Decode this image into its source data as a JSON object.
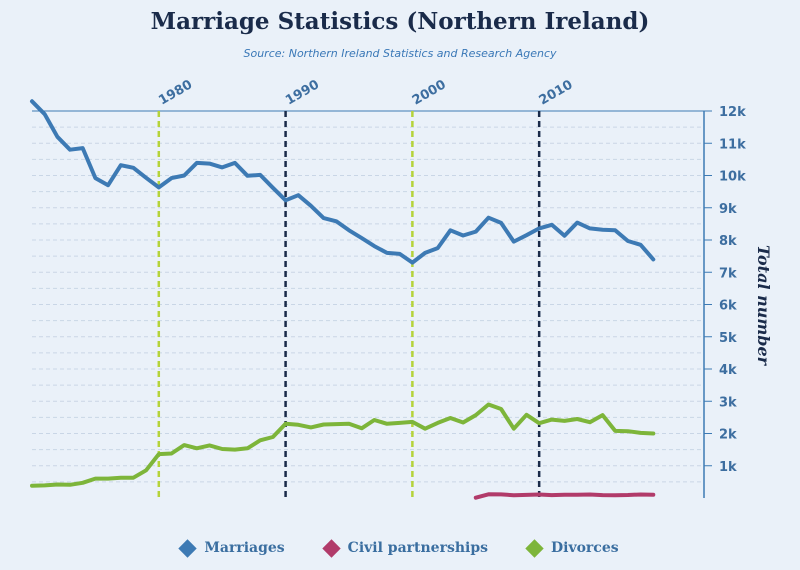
{
  "title": "Marriage Statistics (Northern Ireland)",
  "subtitle": "Source: Northern Ireland Statistics and Research Agency",
  "colors": {
    "marriages": "#3d7ab4",
    "civil": "#b13b6a",
    "divorces": "#7db53a",
    "band_light": "#b5d33a",
    "band_dark": "#1a2b4a"
  },
  "legend": [
    {
      "label": "Marriages",
      "color": "#3d7ab4"
    },
    {
      "label": "Civil partnerships",
      "color": "#b13b6a"
    },
    {
      "label": "Divorces",
      "color": "#7db53a"
    }
  ],
  "chart_data": {
    "type": "line",
    "title": "Marriage Statistics (Northern Ireland)",
    "subtitle": "Source: Northern Ireland Statistics and Research Agency",
    "ylabel": "Total number",
    "xlim": [
      1970,
      2023
    ],
    "ylim": [
      0,
      12000
    ],
    "y_ticks": [
      1000,
      2000,
      3000,
      4000,
      5000,
      6000,
      7000,
      8000,
      9000,
      10000,
      11000,
      12000
    ],
    "y_tick_labels": [
      "1k",
      "2k",
      "3k",
      "4k",
      "5k",
      "6k",
      "7k",
      "8k",
      "9k",
      "10k",
      "11k",
      "12k"
    ],
    "x_plot_lines": [
      {
        "x": 1980,
        "label": "1980",
        "color": "#b5d33a"
      },
      {
        "x": 1990,
        "label": "1990",
        "color": "#1a2b4a"
      },
      {
        "x": 2000,
        "label": "2000",
        "color": "#b5d33a"
      },
      {
        "x": 2010,
        "label": "2010",
        "color": "#1a2b4a"
      }
    ],
    "grid": true,
    "legend_position": "bottom",
    "series": [
      {
        "name": "Marriages",
        "color": "#3d7ab4",
        "x": [
          1970,
          1971,
          1972,
          1973,
          1974,
          1975,
          1976,
          1977,
          1978,
          1979,
          1980,
          1981,
          1982,
          1983,
          1984,
          1985,
          1986,
          1987,
          1988,
          1989,
          1990,
          1991,
          1992,
          1993,
          1994,
          1995,
          1996,
          1997,
          1998,
          1999,
          2000,
          2001,
          2002,
          2003,
          2004,
          2005,
          2006,
          2007,
          2008,
          2009,
          2010,
          2011,
          2012,
          2013,
          2014,
          2015,
          2016,
          2017,
          2018,
          2019
        ],
        "y": [
          12300,
          11900,
          11200,
          10800,
          10850,
          9920,
          9700,
          10320,
          10240,
          9930,
          9630,
          9920,
          10000,
          10390,
          10370,
          10250,
          10390,
          9990,
          10020,
          9620,
          9230,
          9390,
          9060,
          8680,
          8580,
          8300,
          8060,
          7810,
          7600,
          7570,
          7300,
          7600,
          7750,
          8300,
          8140,
          8260,
          8690,
          8530,
          7950,
          8150,
          8360,
          8470,
          8130,
          8540,
          8360,
          8320,
          8300,
          7970,
          7850,
          7400
        ]
      },
      {
        "name": "Civil partnerships",
        "color": "#b13b6a",
        "x": [
          2005,
          2006,
          2007,
          2008,
          2009,
          2010,
          2011,
          2012,
          2013,
          2014,
          2015,
          2016,
          2017,
          2018,
          2019
        ],
        "y": [
          10,
          116,
          111,
          86,
          96,
          110,
          91,
          101,
          100,
          110,
          89,
          88,
          92,
          110,
          101
        ]
      },
      {
        "name": "Divorces",
        "color": "#7db53a",
        "x": [
          1970,
          1971,
          1972,
          1973,
          1974,
          1975,
          1976,
          1977,
          1978,
          1979,
          1980,
          1981,
          1982,
          1983,
          1984,
          1985,
          1986,
          1987,
          1988,
          1989,
          1990,
          1991,
          1992,
          1993,
          1994,
          1995,
          1996,
          1997,
          1998,
          1999,
          2000,
          2001,
          2002,
          2003,
          2004,
          2005,
          2006,
          2007,
          2008,
          2009,
          2010,
          2011,
          2012,
          2013,
          2014,
          2015,
          2016,
          2017,
          2018,
          2019
        ],
        "y": [
          380,
          390,
          420,
          410,
          470,
          600,
          600,
          630,
          630,
          860,
          1360,
          1380,
          1640,
          1540,
          1630,
          1520,
          1500,
          1540,
          1790,
          1890,
          2300,
          2270,
          2190,
          2280,
          2290,
          2300,
          2160,
          2420,
          2300,
          2330,
          2360,
          2150,
          2330,
          2480,
          2340,
          2570,
          2900,
          2760,
          2150,
          2580,
          2320,
          2430,
          2390,
          2450,
          2350,
          2570,
          2080,
          2070,
          2020,
          2000
        ]
      }
    ]
  }
}
